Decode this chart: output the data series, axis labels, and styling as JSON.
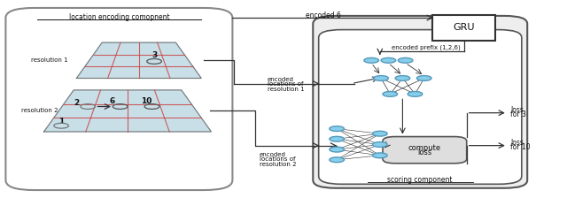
{
  "fig_width": 6.4,
  "fig_height": 2.24,
  "dpi": 100,
  "bg_color": "#ffffff",
  "node_color": "#87ceeb",
  "node_edge": "#5599bb",
  "text_color": "#111111",
  "arrow_color": "#333333",
  "map_blue": "#c8dfe8",
  "red_line": "#cc4444",
  "title": "location encoding comopnent",
  "gru_label": "GRU",
  "compute_label1": "compute",
  "compute_label2": "loss",
  "scoring_label": "scoring component",
  "encoded6": "encoded 6",
  "encoded_prefix": "encoded prefix (1,2,6)",
  "enc_loc_res1_lines": [
    "encoded",
    "locations of",
    "resolution 1"
  ],
  "enc_loc_res2_lines": [
    "encoded",
    "locations of",
    "resolution 2"
  ],
  "loss3_lines": [
    "loss",
    "for 3"
  ],
  "loss10_lines": [
    "loss",
    "for 10"
  ]
}
